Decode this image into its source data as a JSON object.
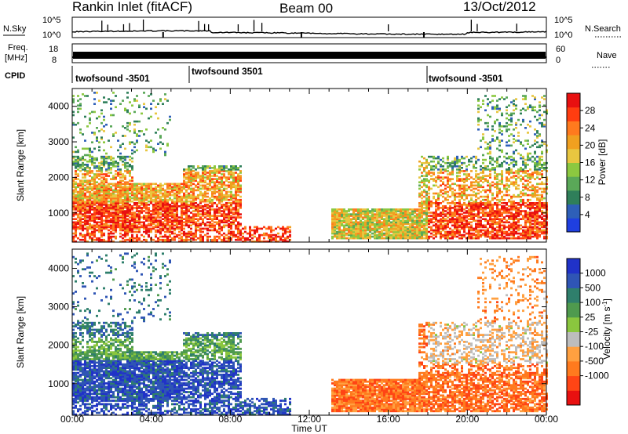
{
  "header": {
    "station": "Rankin Inlet (fitACF)",
    "beam": "Beam 00",
    "date": "13/Oct/2012"
  },
  "strips": {
    "nsky_label": "N.Sky",
    "nsky_ticks": [
      "10^5",
      "10^0"
    ],
    "nsearch_label": "N.Search",
    "nsearch_ticks": [
      "10^5",
      "10^0"
    ],
    "freq_label": "Freq.",
    "freq_unit": "[MHz]",
    "freq_ticks": [
      "8",
      "18"
    ],
    "nave_label": "Nave",
    "nave_ticks": [
      "60",
      "0"
    ],
    "cpid_label": "CPID",
    "cpid_segments": [
      {
        "label": "twofsound -3501",
        "start_hour": 0
      },
      {
        "label": "twofsound 3501",
        "start_hour": 6
      },
      {
        "label": "twofsound -3501",
        "start_hour": 18
      }
    ]
  },
  "colors": {
    "power": [
      "#1f3fe0",
      "#2e5fb8",
      "#2f7f5a",
      "#5aa858",
      "#8cc840",
      "#e8c640",
      "#f0a020",
      "#ff7a1e",
      "#ff3d10",
      "#e81010"
    ],
    "velocity": [
      "#2032c8",
      "#2f55b5",
      "#2f7f6c",
      "#4f9a4e",
      "#8ac63e",
      "#bdbdbd",
      "#ffa040",
      "#ff7a1e",
      "#ff4515",
      "#e81010"
    ]
  },
  "chart_data": [
    {
      "type": "heatmap",
      "title": "Power",
      "xlabel": "Time UT",
      "ylabel": "Slant Range [km]",
      "x_range_hours": [
        0,
        24
      ],
      "x_ticks": [
        "00:00",
        "04:00",
        "08:00",
        "12:00",
        "16:00",
        "20:00",
        "00:00"
      ],
      "ylim": [
        180,
        4500
      ],
      "y_ticks": [
        "1000",
        "2000",
        "3000",
        "4000"
      ],
      "colorbar": {
        "label": "Power [dB]",
        "range": [
          0,
          32
        ],
        "ticks": [
          "4",
          "8",
          "12",
          "16",
          "20",
          "24",
          "28"
        ]
      },
      "grid": false
    },
    {
      "type": "heatmap",
      "title": "Velocity",
      "xlabel": "Time UT",
      "ylabel": "Slant Range [km]",
      "x_range_hours": [
        0,
        24
      ],
      "x_ticks": [
        "00:00",
        "04:00",
        "08:00",
        "12:00",
        "16:00",
        "20:00",
        "00:00"
      ],
      "ylim": [
        180,
        4500
      ],
      "y_ticks": [
        "1000",
        "2000",
        "3000",
        "4000"
      ],
      "colorbar": {
        "label": "Velocity [m s^-1]",
        "ticks": [
          "1000",
          "500",
          "100",
          "25",
          "-25",
          "-100",
          "-500",
          "-1000"
        ]
      },
      "grid": false
    }
  ]
}
